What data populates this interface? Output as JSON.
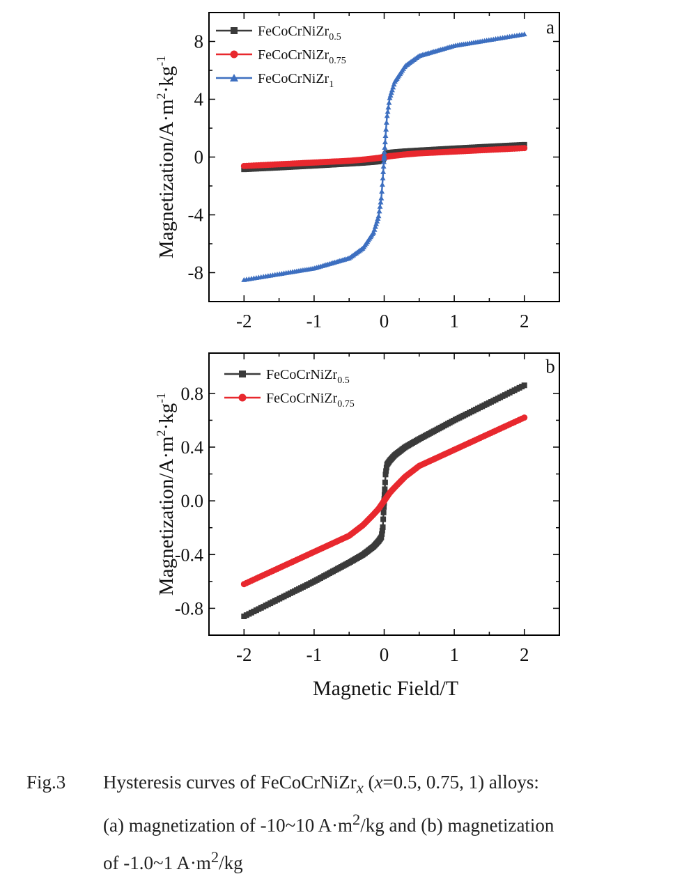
{
  "charts": [
    {
      "panel_label": "a",
      "ylabel": "Magnetization/A·m²·kg⁻¹",
      "ylabel_parts": [
        "Magnetization/A·m",
        "2",
        "·kg",
        "-1"
      ],
      "yticks": [
        "8",
        "4",
        "0",
        "-4",
        "-8"
      ],
      "xticks": [
        "-2",
        "-1",
        "0",
        "1",
        "2"
      ]
    },
    {
      "panel_label": "b",
      "ylabel": "Magnetization/A·m²·kg⁻¹",
      "ylabel_parts": [
        "Magnetization/A·m",
        "2",
        "·kg",
        "-1"
      ],
      "yticks": [
        "0.8",
        "0.4",
        "0.0",
        "-0.4",
        "-0.8"
      ],
      "xticks": [
        "-2",
        "-1",
        "0",
        "1",
        "2"
      ],
      "xlabel": "Magnetic Field/T"
    }
  ],
  "chart_data": [
    {
      "type": "line",
      "panel": "a",
      "xlabel": "",
      "ylabel": "Magnetization/A·m²·kg⁻¹",
      "xlim": [
        -2.5,
        2.5
      ],
      "ylim": [
        -10,
        10
      ],
      "x": [
        -2,
        -1.5,
        -1,
        -0.5,
        -0.3,
        -0.15,
        -0.08,
        -0.04,
        -0.02,
        0,
        0.02,
        0.04,
        0.08,
        0.15,
        0.3,
        0.5,
        1,
        1.5,
        2
      ],
      "series": [
        {
          "name": "FeCoCrNiZr0.5",
          "legend_base": "FeCoCrNiZr",
          "legend_sub": "0.5",
          "color": "#3a3a3a",
          "marker": "square",
          "values": [
            -0.85,
            -0.73,
            -0.6,
            -0.46,
            -0.4,
            -0.34,
            -0.3,
            -0.27,
            -0.2,
            0,
            0.2,
            0.27,
            0.3,
            0.34,
            0.4,
            0.46,
            0.6,
            0.73,
            0.85
          ]
        },
        {
          "name": "FeCoCrNiZr0.75",
          "legend_base": "FeCoCrNiZr",
          "legend_sub": "0.75",
          "color": "#e8282e",
          "marker": "circle",
          "values": [
            -0.62,
            -0.5,
            -0.38,
            -0.26,
            -0.18,
            -0.1,
            -0.06,
            -0.03,
            -0.02,
            0,
            0.02,
            0.03,
            0.06,
            0.1,
            0.18,
            0.26,
            0.38,
            0.5,
            0.62
          ]
        },
        {
          "name": "FeCoCrNiZr1",
          "legend_base": "FeCoCrNiZr",
          "legend_sub": "1",
          "color": "#3d6fc0",
          "marker": "triangle",
          "values": [
            -8.5,
            -8.1,
            -7.7,
            -7.0,
            -6.3,
            -5.2,
            -4.1,
            -2.8,
            -1.5,
            0,
            1.5,
            2.8,
            4.1,
            5.2,
            6.3,
            7.0,
            7.7,
            8.1,
            8.5
          ]
        }
      ]
    },
    {
      "type": "line",
      "panel": "b",
      "xlabel": "Magnetic Field/T",
      "ylabel": "Magnetization/A·m²·kg⁻¹",
      "xlim": [
        -2.5,
        2.5
      ],
      "ylim": [
        -1.0,
        1.1
      ],
      "x": [
        -2,
        -1.5,
        -1,
        -0.5,
        -0.3,
        -0.15,
        -0.08,
        -0.04,
        -0.02,
        0,
        0.02,
        0.04,
        0.08,
        0.15,
        0.3,
        0.5,
        1,
        1.5,
        2
      ],
      "series": [
        {
          "name": "FeCoCrNiZr0.5",
          "legend_base": "FeCoCrNiZr",
          "legend_sub": "0.5",
          "color": "#3a3a3a",
          "marker": "square",
          "values": [
            -0.86,
            -0.73,
            -0.6,
            -0.46,
            -0.4,
            -0.34,
            -0.3,
            -0.27,
            -0.2,
            0,
            0.2,
            0.27,
            0.3,
            0.34,
            0.4,
            0.46,
            0.6,
            0.73,
            0.86
          ]
        },
        {
          "name": "FeCoCrNiZr0.75",
          "legend_base": "FeCoCrNiZr",
          "legend_sub": "0.75",
          "color": "#e8282e",
          "marker": "circle",
          "values": [
            -0.62,
            -0.5,
            -0.38,
            -0.26,
            -0.18,
            -0.1,
            -0.06,
            -0.03,
            -0.015,
            0,
            0.015,
            0.03,
            0.06,
            0.1,
            0.18,
            0.26,
            0.38,
            0.5,
            0.62
          ]
        }
      ]
    }
  ],
  "caption": {
    "number": "Fig.3",
    "line1_pre": "Hysteresis curves of FeCoCrNiZr",
    "line1_sub": "x",
    "line1_paren_open": " (",
    "line1_var": "x",
    "line1_post": "=0.5, 0.75, 1) alloys:",
    "line2_pre": "(a) magnetization of -10~10 A·m",
    "line2_sup": "2",
    "line2_post": "/kg and (b) magnetization",
    "line3_pre": "of -1.0~1 A·m",
    "line3_sup": "2",
    "line3_post": "/kg"
  }
}
